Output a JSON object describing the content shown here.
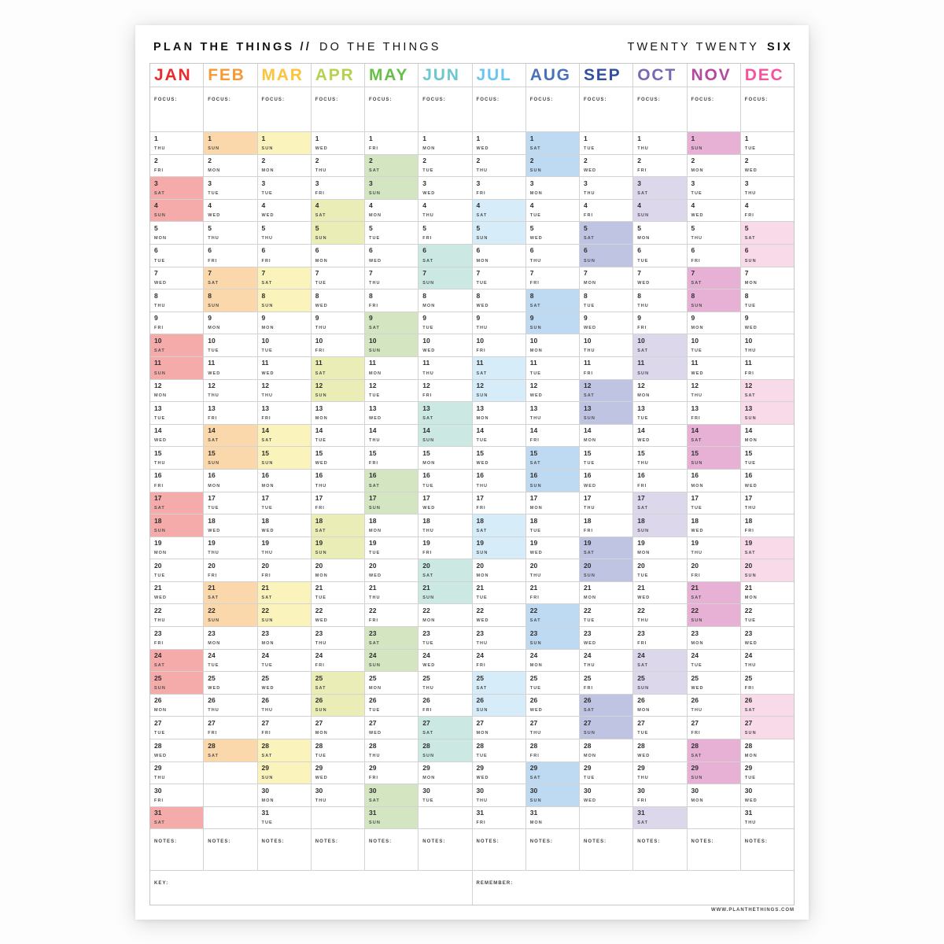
{
  "header": {
    "title_bold": "PLAN THE THINGS //",
    "title_light": "DO THE THINGS",
    "year_light": "TWENTY TWENTY",
    "year_bold": "SIX"
  },
  "labels": {
    "focus": "FOCUS:",
    "notes": "NOTES:",
    "key": "KEY:",
    "remember": "REMEMBER:"
  },
  "footer": {
    "url": "WWW.PLANTHETHINGS.COM"
  },
  "months": [
    {
      "name": "JAN",
      "name_color": "#e92b2d",
      "highlight_color": "#f6abab",
      "days": 31,
      "weekdays": [
        "THU",
        "FRI",
        "SAT",
        "SUN",
        "MON",
        "TUE",
        "WED",
        "THU",
        "FRI",
        "SAT",
        "SUN",
        "MON",
        "TUE",
        "WED",
        "THU",
        "FRI",
        "SAT",
        "SUN",
        "MON",
        "TUE",
        "WED",
        "THU",
        "FRI",
        "SAT",
        "SUN",
        "MON",
        "TUE",
        "WED",
        "THU",
        "FRI",
        "SAT"
      ],
      "weekend_days": [
        3,
        4,
        10,
        11,
        17,
        18,
        24,
        25,
        31
      ]
    },
    {
      "name": "FEB",
      "name_color": "#f69a38",
      "highlight_color": "#fbd8ab",
      "days": 28,
      "weekdays": [
        "SUN",
        "MON",
        "TUE",
        "WED",
        "THU",
        "FRI",
        "SAT",
        "SUN",
        "MON",
        "TUE",
        "WED",
        "THU",
        "FRI",
        "SAT",
        "SUN",
        "MON",
        "TUE",
        "WED",
        "THU",
        "FRI",
        "SAT",
        "SUN",
        "MON",
        "TUE",
        "WED",
        "THU",
        "FRI",
        "SAT"
      ],
      "weekend_days": [
        1,
        7,
        8,
        14,
        15,
        21,
        22,
        28
      ]
    },
    {
      "name": "MAR",
      "name_color": "#fbc440",
      "highlight_color": "#fbf3bc",
      "days": 31,
      "weekdays": [
        "SUN",
        "MON",
        "TUE",
        "WED",
        "THU",
        "FRI",
        "SAT",
        "SUN",
        "MON",
        "TUE",
        "WED",
        "THU",
        "FRI",
        "SAT",
        "SUN",
        "MON",
        "TUE",
        "WED",
        "THU",
        "FRI",
        "SAT",
        "SUN",
        "MON",
        "TUE",
        "WED",
        "THU",
        "FRI",
        "SAT",
        "SUN",
        "MON",
        "TUE"
      ],
      "weekend_days": [
        1,
        7,
        8,
        14,
        15,
        21,
        22,
        28,
        29
      ]
    },
    {
      "name": "APR",
      "name_color": "#b5d24f",
      "highlight_color": "#eaeeb6",
      "days": 30,
      "weekdays": [
        "WED",
        "THU",
        "FRI",
        "SAT",
        "SUN",
        "MON",
        "TUE",
        "WED",
        "THU",
        "FRI",
        "SAT",
        "SUN",
        "MON",
        "TUE",
        "WED",
        "THU",
        "FRI",
        "SAT",
        "SUN",
        "MON",
        "TUE",
        "WED",
        "THU",
        "FRI",
        "SAT",
        "SUN",
        "MON",
        "TUE",
        "WED",
        "THU"
      ],
      "weekend_days": [
        4,
        5,
        11,
        12,
        18,
        19,
        25,
        26
      ]
    },
    {
      "name": "MAY",
      "name_color": "#67bf4a",
      "highlight_color": "#d4e5c1",
      "days": 31,
      "weekdays": [
        "FRI",
        "SAT",
        "SUN",
        "MON",
        "TUE",
        "WED",
        "THU",
        "FRI",
        "SAT",
        "SUN",
        "MON",
        "TUE",
        "WED",
        "THU",
        "FRI",
        "SAT",
        "SUN",
        "MON",
        "TUE",
        "WED",
        "THU",
        "FRI",
        "SAT",
        "SUN",
        "MON",
        "TUE",
        "WED",
        "THU",
        "FRI",
        "SAT",
        "SUN"
      ],
      "weekend_days": [
        2,
        3,
        9,
        10,
        16,
        17,
        23,
        24,
        30,
        31
      ]
    },
    {
      "name": "JUN",
      "name_color": "#6cc8cc",
      "highlight_color": "#cbe8e3",
      "days": 30,
      "weekdays": [
        "MON",
        "TUE",
        "WED",
        "THU",
        "FRI",
        "SAT",
        "SUN",
        "MON",
        "TUE",
        "WED",
        "THU",
        "FRI",
        "SAT",
        "SUN",
        "MON",
        "TUE",
        "WED",
        "THU",
        "FRI",
        "SAT",
        "SUN",
        "MON",
        "TUE",
        "WED",
        "THU",
        "FRI",
        "SAT",
        "SUN",
        "MON",
        "TUE"
      ],
      "weekend_days": [
        6,
        7,
        13,
        14,
        20,
        21,
        27,
        28
      ]
    },
    {
      "name": "JUL",
      "name_color": "#6ac6f0",
      "highlight_color": "#d6edf9",
      "days": 31,
      "weekdays": [
        "WED",
        "THU",
        "FRI",
        "SAT",
        "SUN",
        "MON",
        "TUE",
        "WED",
        "THU",
        "FRI",
        "SAT",
        "SUN",
        "MON",
        "TUE",
        "WED",
        "THU",
        "FRI",
        "SAT",
        "SUN",
        "MON",
        "TUE",
        "WED",
        "THU",
        "FRI",
        "SAT",
        "SUN",
        "MON",
        "TUE",
        "WED",
        "THU",
        "FRI"
      ],
      "weekend_days": [
        4,
        5,
        11,
        12,
        18,
        19,
        25,
        26
      ]
    },
    {
      "name": "AUG",
      "name_color": "#4a72b8",
      "highlight_color": "#bedaf2",
      "days": 31,
      "weekdays": [
        "SAT",
        "SUN",
        "MON",
        "TUE",
        "WED",
        "THU",
        "FRI",
        "SAT",
        "SUN",
        "MON",
        "TUE",
        "WED",
        "THU",
        "FRI",
        "SAT",
        "SUN",
        "MON",
        "TUE",
        "WED",
        "THU",
        "FRI",
        "SAT",
        "SUN",
        "MON",
        "TUE",
        "WED",
        "THU",
        "FRI",
        "SAT",
        "SUN",
        "MON"
      ],
      "weekend_days": [
        1,
        2,
        8,
        9,
        15,
        16,
        22,
        23,
        29,
        30
      ]
    },
    {
      "name": "SEP",
      "name_color": "#30509e",
      "highlight_color": "#bfc4e2",
      "days": 30,
      "weekdays": [
        "TUE",
        "WED",
        "THU",
        "FRI",
        "SAT",
        "SUN",
        "MON",
        "TUE",
        "WED",
        "THU",
        "FRI",
        "SAT",
        "SUN",
        "MON",
        "TUE",
        "WED",
        "THU",
        "FRI",
        "SAT",
        "SUN",
        "MON",
        "TUE",
        "WED",
        "THU",
        "FRI",
        "SAT",
        "SUN",
        "MON",
        "TUE",
        "WED"
      ],
      "weekend_days": [
        5,
        6,
        12,
        13,
        19,
        20,
        26,
        27
      ]
    },
    {
      "name": "OCT",
      "name_color": "#7a68b5",
      "highlight_color": "#ddd7ec",
      "days": 31,
      "weekdays": [
        "THU",
        "FRI",
        "SAT",
        "SUN",
        "MON",
        "TUE",
        "WED",
        "THU",
        "FRI",
        "SAT",
        "SUN",
        "MON",
        "TUE",
        "WED",
        "THU",
        "FRI",
        "SAT",
        "SUN",
        "MON",
        "TUE",
        "WED",
        "THU",
        "FRI",
        "SAT",
        "SUN",
        "MON",
        "TUE",
        "WED",
        "THU",
        "FRI",
        "SAT"
      ],
      "weekend_days": [
        3,
        4,
        10,
        11,
        17,
        18,
        24,
        25,
        31
      ]
    },
    {
      "name": "NOV",
      "name_color": "#b34a9e",
      "highlight_color": "#e7b1d6",
      "days": 30,
      "weekdays": [
        "SUN",
        "MON",
        "TUE",
        "WED",
        "THU",
        "FRI",
        "SAT",
        "SUN",
        "MON",
        "TUE",
        "WED",
        "THU",
        "FRI",
        "SAT",
        "SUN",
        "MON",
        "TUE",
        "WED",
        "THU",
        "FRI",
        "SAT",
        "SUN",
        "MON",
        "TUE",
        "WED",
        "THU",
        "FRI",
        "SAT",
        "SUN",
        "MON"
      ],
      "weekend_days": [
        1,
        7,
        8,
        14,
        15,
        21,
        22,
        28,
        29
      ]
    },
    {
      "name": "DEC",
      "name_color": "#f2549e",
      "highlight_color": "#f9dae8",
      "days": 31,
      "weekdays": [
        "TUE",
        "WED",
        "THU",
        "FRI",
        "SAT",
        "SUN",
        "MON",
        "TUE",
        "WED",
        "THU",
        "FRI",
        "SAT",
        "SUN",
        "MON",
        "TUE",
        "WED",
        "THU",
        "FRI",
        "SAT",
        "SUN",
        "MON",
        "TUE",
        "WED",
        "THU",
        "FRI",
        "SAT",
        "SUN",
        "MON",
        "TUE",
        "WED",
        "THU"
      ],
      "weekend_days": [
        5,
        6,
        12,
        13,
        19,
        20,
        26,
        27
      ]
    }
  ]
}
